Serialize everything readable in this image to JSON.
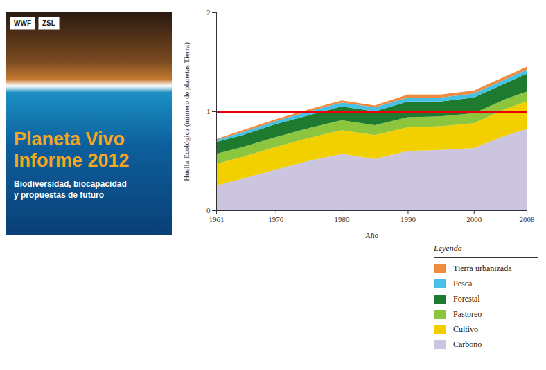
{
  "chart_data": {
    "type": "area",
    "stacked": true,
    "x_label": "Año",
    "y_label": "Huella Ecológica (número de planetas Tierra)",
    "x": [
      1961,
      1965,
      1970,
      1975,
      1980,
      1985,
      1990,
      1995,
      2000,
      2005,
      2008
    ],
    "xlim": [
      1961,
      2008
    ],
    "xticks": [
      1961,
      1970,
      1980,
      1990,
      2000,
      2008
    ],
    "ylim": [
      0,
      2
    ],
    "yticks": [
      0,
      1,
      2
    ],
    "grid": false,
    "legend": "bottom-right",
    "legend_title": "Leyenda",
    "series": [
      {
        "name": "Carbono",
        "color": "#cbc5df",
        "values": [
          0.25,
          0.32,
          0.41,
          0.5,
          0.57,
          0.52,
          0.6,
          0.61,
          0.63,
          0.76,
          0.82
        ]
      },
      {
        "name": "Cultivo",
        "color": "#f2d000",
        "values": [
          0.22,
          0.22,
          0.23,
          0.23,
          0.24,
          0.24,
          0.24,
          0.24,
          0.25,
          0.27,
          0.28
        ]
      },
      {
        "name": "Pastoreo",
        "color": "#8cc63f",
        "values": [
          0.1,
          0.1,
          0.1,
          0.1,
          0.1,
          0.1,
          0.1,
          0.1,
          0.1,
          0.1,
          0.1
        ]
      },
      {
        "name": "Forestal",
        "color": "#1e7a2e",
        "values": [
          0.12,
          0.12,
          0.13,
          0.13,
          0.14,
          0.14,
          0.16,
          0.15,
          0.16,
          0.16,
          0.18
        ]
      },
      {
        "name": "Pesca",
        "color": "#45c1e8",
        "values": [
          0.02,
          0.03,
          0.03,
          0.04,
          0.04,
          0.04,
          0.04,
          0.04,
          0.04,
          0.04,
          0.04
        ]
      },
      {
        "name": "Tierra urbanizada",
        "color": "#f08a3c",
        "values": [
          0.01,
          0.02,
          0.02,
          0.02,
          0.02,
          0.02,
          0.03,
          0.03,
          0.03,
          0.03,
          0.03
        ]
      }
    ],
    "annotations": [
      {
        "type": "hline",
        "value": 1,
        "color": "#e8000b"
      }
    ]
  },
  "cover": {
    "logos": [
      "WWF",
      "ZSL"
    ],
    "title_lines": [
      "Planeta Vivo",
      "Informe 2012"
    ],
    "subtitle_lines": [
      "Biodiversidad, biocapacidad",
      "y propuestas de futuro"
    ]
  }
}
